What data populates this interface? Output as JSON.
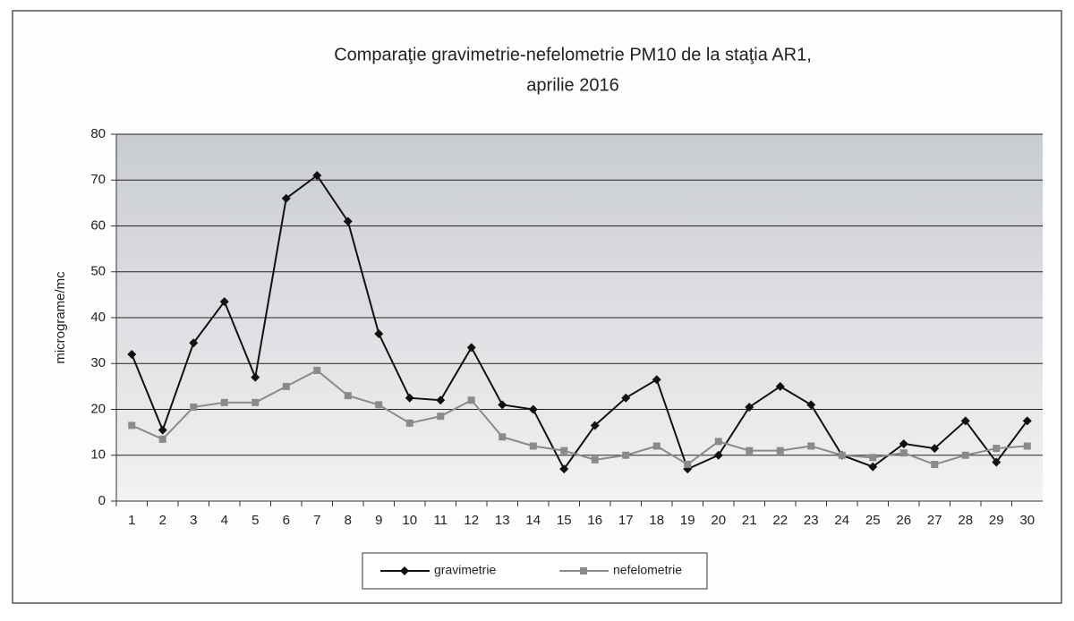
{
  "chart_data": {
    "type": "line",
    "title": "Comparaţie gravimetrie-nefelometrie PM10 de la staţia AR1,",
    "subtitle": "aprilie 2016",
    "y_label": "micrograme/mc",
    "categories": [
      "1",
      "2",
      "3",
      "4",
      "5",
      "6",
      "7",
      "8",
      "9",
      "10",
      "11",
      "12",
      "13",
      "14",
      "15",
      "16",
      "17",
      "18",
      "19",
      "20",
      "21",
      "22",
      "23",
      "24",
      "25",
      "26",
      "27",
      "28",
      "29",
      "30"
    ],
    "series": [
      {
        "name": "gravimetrie",
        "color": "#111111",
        "marker": "diamond",
        "values": [
          32,
          15.5,
          34.5,
          43.5,
          27,
          66,
          71,
          61,
          36.5,
          22.5,
          22,
          33.5,
          21,
          20,
          7,
          16.5,
          22.5,
          26.5,
          7,
          10,
          20.5,
          25,
          21,
          10,
          7.5,
          12.5,
          11.5,
          17.5,
          8.5,
          17.5
        ]
      },
      {
        "name": "nefelometrie",
        "color": "#8a8a8a",
        "marker": "square",
        "values": [
          16.5,
          13.5,
          20.5,
          21.5,
          21.5,
          25,
          28.5,
          23,
          21,
          17,
          18.5,
          22,
          14,
          12,
          11,
          9,
          10,
          12,
          8,
          13,
          11,
          11,
          12,
          10,
          9.5,
          10.5,
          8,
          10,
          11.5,
          12
        ]
      }
    ],
    "ylim": [
      0,
      80
    ],
    "yticks": [
      0,
      10,
      20,
      30,
      40,
      50,
      60,
      70,
      80
    ],
    "grid": true,
    "legend": "bottom"
  }
}
